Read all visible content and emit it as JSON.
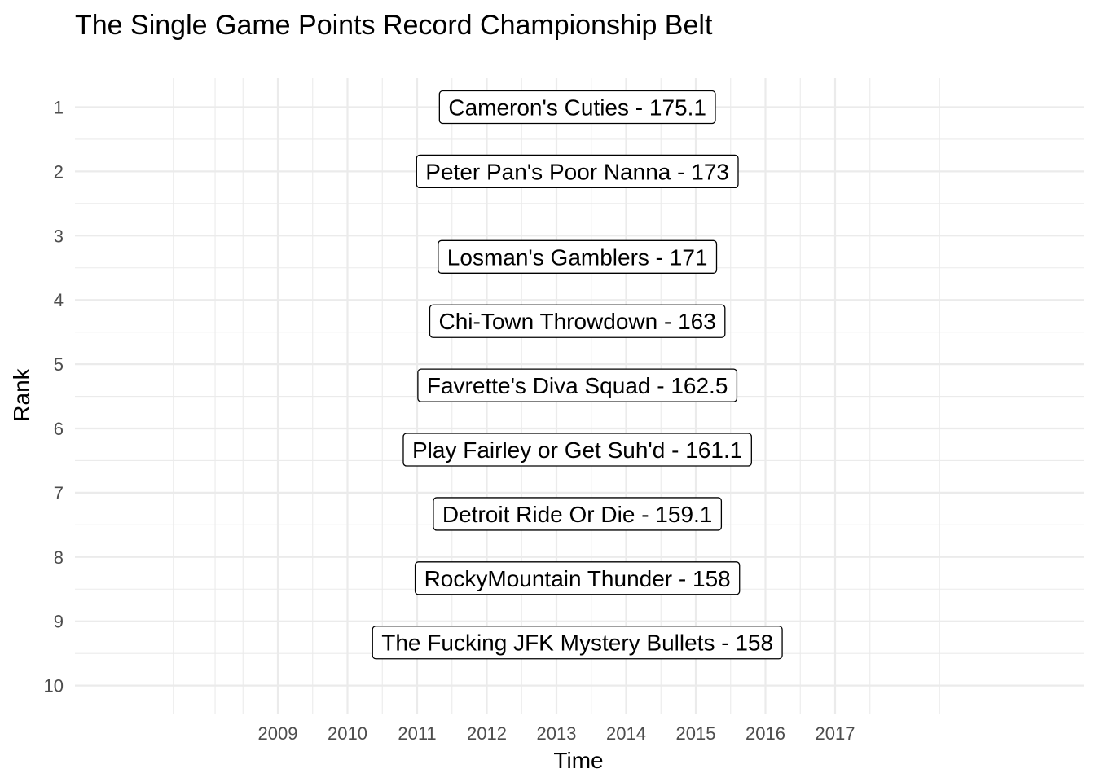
{
  "chart_data": {
    "type": "table",
    "title": "The Single Game Points Record Championship Belt",
    "xlabel": "Time",
    "ylabel": "Rank",
    "x_ticks": [
      "2009",
      "2010",
      "2011",
      "2012",
      "2013",
      "2014",
      "2015",
      "2016",
      "2017"
    ],
    "y_ticks": [
      1,
      2,
      3,
      4,
      5,
      6,
      7,
      8,
      9,
      10
    ],
    "ylim": [
      10,
      1
    ],
    "y_reversed": true,
    "grid": true,
    "legend": "none",
    "points": [
      {
        "x": 2013.3,
        "rank": 1.0,
        "team": "Cameron's Cuties",
        "points": "175.1",
        "label": "Cameron's Cuties - 175.1"
      },
      {
        "x": 2013.3,
        "rank": 2.0,
        "team": "Peter Pan's Poor Nanna",
        "points": "173",
        "label": "Peter Pan's Poor Nanna - 173"
      },
      {
        "x": 2013.3,
        "rank": 3.33,
        "team": "Losman's Gamblers",
        "points": "171",
        "label": "Losman's Gamblers - 171"
      },
      {
        "x": 2013.3,
        "rank": 4.33,
        "team": "Chi-Town Throwdown",
        "points": "163",
        "label": "Chi-Town Throwdown - 163"
      },
      {
        "x": 2013.3,
        "rank": 5.33,
        "team": "Favrette's Diva Squad",
        "points": "162.5",
        "label": "Favrette's Diva Squad - 162.5"
      },
      {
        "x": 2013.3,
        "rank": 6.33,
        "team": "Play Fairley or Get Suh'd",
        "points": "161.1",
        "label": "Play Fairley or Get Suh'd - 161.1"
      },
      {
        "x": 2013.3,
        "rank": 7.33,
        "team": "Detroit Ride Or Die",
        "points": "159.1",
        "label": "Detroit Ride Or Die - 159.1"
      },
      {
        "x": 2013.3,
        "rank": 8.33,
        "team": "RockyMountain Thunder",
        "points": "158",
        "label": "RockyMountain Thunder - 158"
      },
      {
        "x": 2013.3,
        "rank": 9.33,
        "team": "The Fucking JFK Mystery Bullets",
        "points": "158",
        "label": "The Fucking JFK Mystery Bullets - 158"
      }
    ]
  }
}
